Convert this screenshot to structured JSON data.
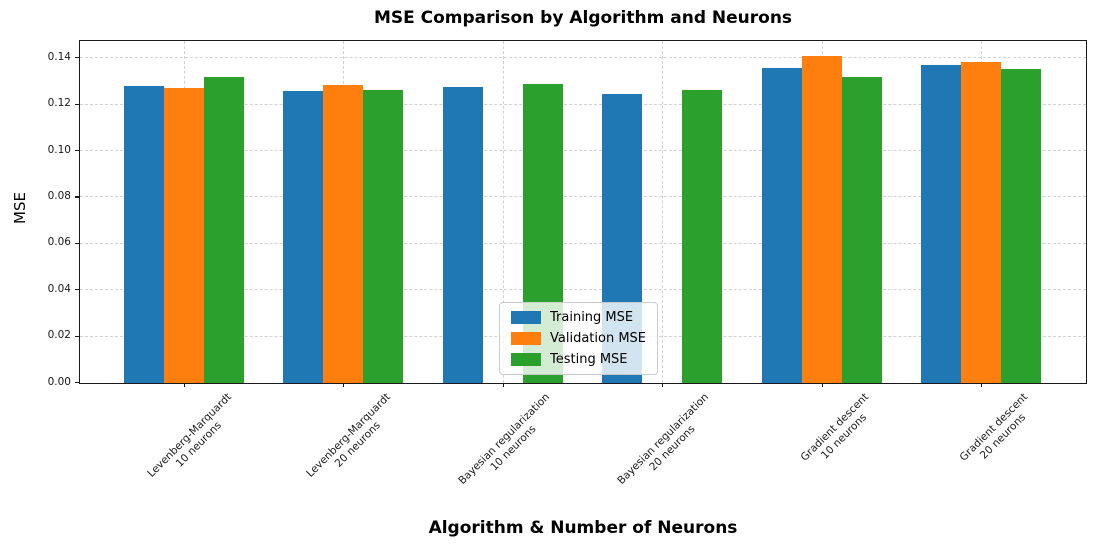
{
  "chart_data": {
    "type": "bar",
    "title": "MSE Comparison by Algorithm and Neurons",
    "xlabel": "Algorithm & Number of Neurons",
    "ylabel": "MSE",
    "categories": [
      {
        "line1": "Levenberg-Marquardt",
        "line2": "10 neurons"
      },
      {
        "line1": "Levenberg-Marquardt",
        "line2": "20 neurons"
      },
      {
        "line1": "Bayesian regularization",
        "line2": "10 neurons"
      },
      {
        "line1": "Bayesian regularization",
        "line2": "20 neurons"
      },
      {
        "line1": "Gradient descent",
        "line2": "10 neurons"
      },
      {
        "line1": "Gradient descent",
        "line2": "20 neurons"
      }
    ],
    "series": [
      {
        "name": "Training MSE",
        "color": "#1f77b4",
        "values": [
          0.128,
          0.126,
          0.1275,
          0.1245,
          0.136,
          0.137
        ]
      },
      {
        "name": "Validation MSE",
        "color": "#ff7f0e",
        "values": [
          0.127,
          0.1285,
          0,
          0,
          0.141,
          0.1385
        ]
      },
      {
        "name": "Testing MSE",
        "color": "#2ca02c",
        "values": [
          0.132,
          0.1265,
          0.129,
          0.1265,
          0.132,
          0.1355
        ]
      }
    ],
    "ylim": [
      0,
      0.147
    ],
    "yticks": [
      "0.00",
      "0.02",
      "0.04",
      "0.06",
      "0.08",
      "0.10",
      "0.12",
      "0.14"
    ],
    "grid": true,
    "grid_style": "dashed",
    "legend_position": "lower center"
  }
}
